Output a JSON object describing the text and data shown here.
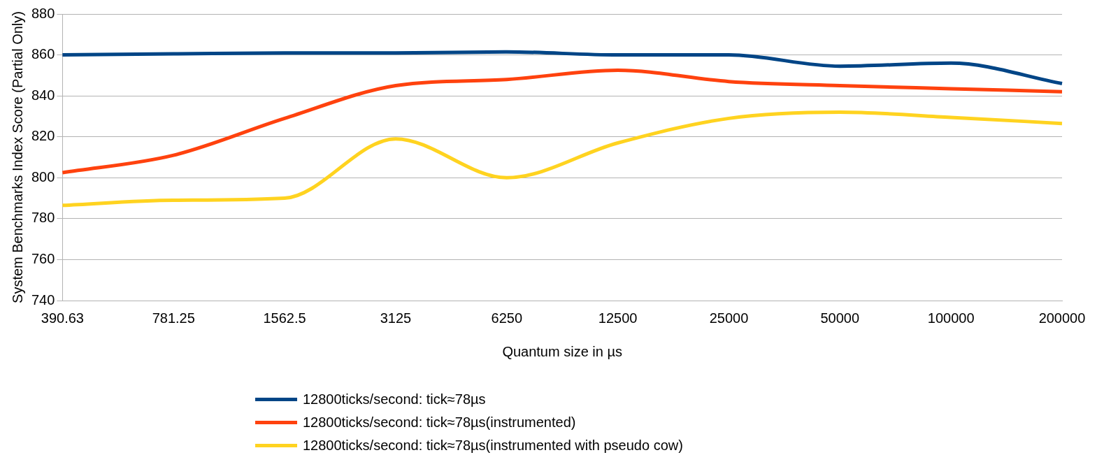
{
  "chart_data": {
    "type": "line",
    "xlabel": "Quantum size in µs",
    "ylabel": "System Benchmarks Index Score (Partial Only)",
    "categories": [
      "390.63",
      "781.25",
      "1562.5",
      "3125",
      "6250",
      "12500",
      "25000",
      "50000",
      "100000",
      "200000"
    ],
    "series": [
      {
        "name": "12800ticks/second: tick≈78µs",
        "color": "#004586",
        "values": [
          860,
          860.5,
          861,
          861,
          861.5,
          860,
          860,
          854.5,
          856,
          846
        ]
      },
      {
        "name": "12800ticks/second: tick≈78µs(instrumented)",
        "color": "#ff420e",
        "values": [
          802.5,
          811,
          829,
          845,
          848,
          852.5,
          847,
          845,
          843.5,
          842
        ]
      },
      {
        "name": "12800ticks/second: tick≈78µs(instrumented with pseudo cow)",
        "color": "#ffd320",
        "values": [
          786.5,
          789,
          790,
          819,
          800,
          817,
          829,
          832,
          829.5,
          826.5
        ]
      }
    ],
    "ylim": [
      740,
      880
    ],
    "yticks": [
      740,
      760,
      780,
      800,
      820,
      840,
      860,
      880
    ],
    "grid": "y",
    "legend": "bottom",
    "marker": "none",
    "line_style": "solid"
  }
}
